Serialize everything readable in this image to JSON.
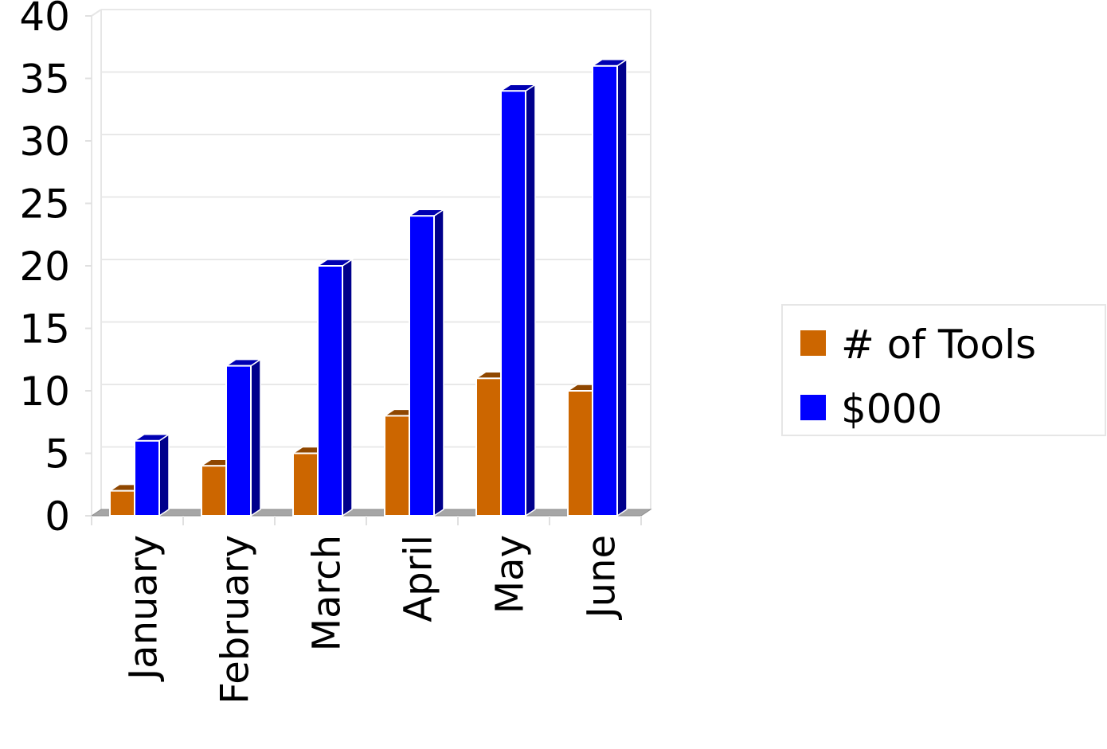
{
  "chart_data": {
    "type": "bar",
    "title": "",
    "xlabel": "",
    "ylabel": "",
    "categories": [
      "January",
      "February",
      "March",
      "April",
      "May",
      "June"
    ],
    "series": [
      {
        "name": "# of Tools",
        "values": [
          2,
          4,
          5,
          8,
          11,
          10
        ],
        "color": "#cc6600"
      },
      {
        "name": "$000",
        "values": [
          6,
          12,
          20,
          24,
          34,
          36
        ],
        "color": "#0000ff"
      }
    ],
    "ylim": [
      0,
      40
    ],
    "yticks": [
      0,
      5,
      10,
      15,
      20,
      25,
      30,
      35,
      40
    ],
    "grid": true,
    "legend_position": "right",
    "style": "3d"
  }
}
